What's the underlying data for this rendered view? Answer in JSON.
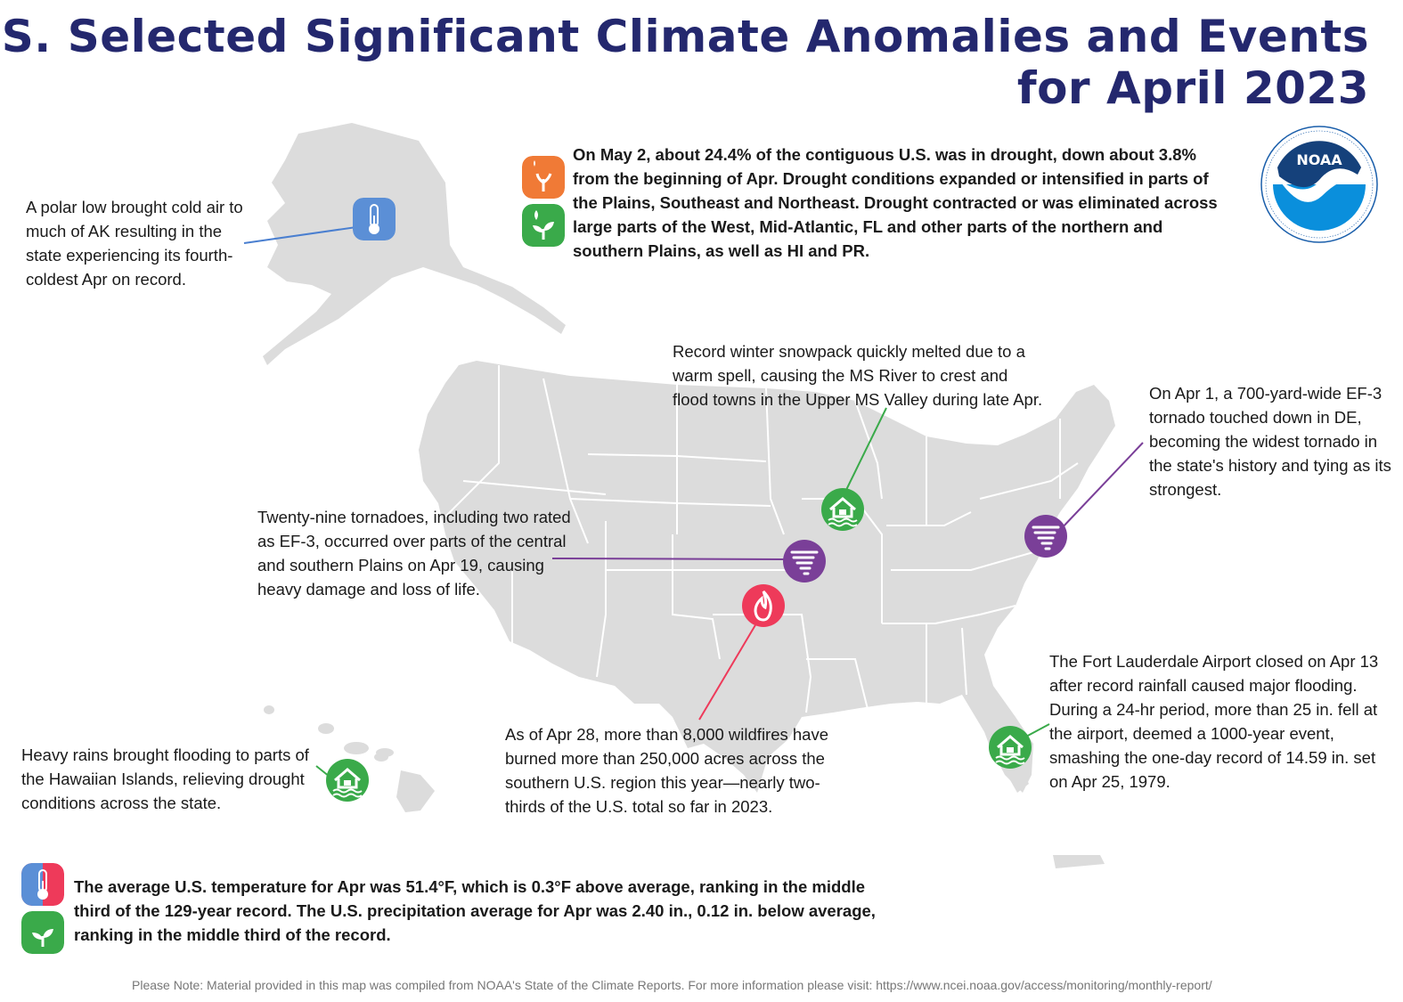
{
  "title": {
    "line1": "U.S. Selected Significant Climate Anomalies and Events",
    "line2": "for April 2023"
  },
  "logo": {
    "text": "NOAA",
    "ring_text": "NATIONAL OCEANIC AND ATMOSPHERIC ADMINISTRATION · U.S. DEPARTMENT OF COMMERCE"
  },
  "drought_summary": "On May 2, about 24.4% of the contiguous U.S. was in drought, down about 3.8% from the beginning of Apr. Drought conditions expanded or intensified in parts of the Plains, Southeast and Northeast. Drought contracted or was eliminated across large parts of the West, Mid-Atlantic, FL and other parts of the northern and southern Plains, as well as HI and PR.",
  "events": {
    "alaska": "A polar low brought cold air to much of AK resulting in the state experiencing its fourth-coldest Apr on record.",
    "upper_ms": "Record winter snowpack quickly melted due to a warm spell, causing the MS River to crest and flood towns in the Upper MS Valley during late Apr.",
    "delaware": "On Apr 1, a 700-yard-wide EF-3 tornado touched down in DE, becoming the widest tornado in the state's history and tying as its strongest.",
    "plains_tornado": "Twenty-nine tornadoes, including two rated as EF-3, occurred over parts of the central and southern Plains on Apr 19, causing heavy damage and loss of life.",
    "florida": "The Fort Lauderdale Airport closed on Apr 13 after record rainfall caused major flooding. During a 24-hr period, more than 25 in. fell at the airport, deemed a 1000-year event, smashing the one-day record of 14.59 in. set on Apr 25, 1979.",
    "wildfires": "As of Apr 28, more than 8,000 wildfires have burned more than 250,000 acres across the southern U.S. region this year—nearly two-thirds of the U.S. total so far in 2023.",
    "hawaii": "Heavy rains brought flooding to parts of the Hawaiian Islands, relieving drought conditions across the state."
  },
  "national_summary": "The average U.S. temperature for Apr was 51.4°F, which is 0.3°F above average, ranking in the middle third of the 129-year record. The U.S. precipitation average for Apr was 2.40 in., 0.12 in. below average, ranking in the middle third of the record.",
  "footer": "Please Note: Material provided in this map was compiled from NOAA's State of the Climate Reports. For more information please visit: https://www.ncei.noaa.gov/access/monitoring/monthly-report/",
  "colors": {
    "title": "#24286e",
    "land": "#dcdcdc",
    "border": "#ffffff",
    "cold_icon": "#5b8fd6",
    "flood_icon": "#3aaa4a",
    "tornado_icon": "#7a3f98",
    "fire_icon": "#ee3a5a",
    "drought_icon": "#f07a36",
    "wet_icon": "#3aaa4a"
  },
  "icons": [
    "thermometer-cold-icon",
    "flood-house-icon",
    "tornado-icon",
    "wildfire-icon",
    "drought-plant-icon",
    "wet-plant-icon",
    "thermometer-split-icon"
  ]
}
